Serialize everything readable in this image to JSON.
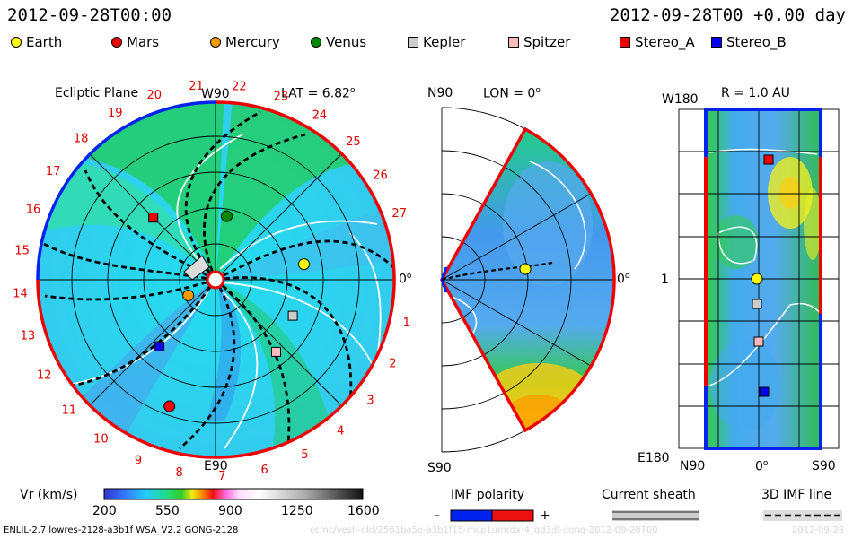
{
  "header": {
    "left_time": "2012-09-28T00:00",
    "right_time": "2012-09-28T00 +0.00 day"
  },
  "legend": [
    {
      "label": "Earth",
      "color": "#ffff00",
      "shape": "circle"
    },
    {
      "label": "Mars",
      "color": "#ee0000",
      "shape": "circle"
    },
    {
      "label": "Mercury",
      "color": "#ff9900",
      "shape": "circle"
    },
    {
      "label": "Venus",
      "color": "#008800",
      "shape": "circle"
    },
    {
      "label": "Kepler",
      "color": "#cccccc",
      "shape": "square"
    },
    {
      "label": "Spitzer",
      "color": "#ffbbbb",
      "shape": "square"
    },
    {
      "label": "Stereo_A",
      "color": "#ee0000",
      "shape": "square"
    },
    {
      "label": "Stereo_B",
      "color": "#0000ee",
      "shape": "square"
    }
  ],
  "panel1": {
    "title": "Ecliptic Plane",
    "lat": "LAT = 6.82",
    "top_label": "W90",
    "bottom_label": "E90",
    "right_label": "0",
    "carrington": [
      "1",
      "2",
      "3",
      "4",
      "5",
      "6",
      "7",
      "8",
      "9",
      "10",
      "11",
      "12",
      "13",
      "14",
      "15",
      "16",
      "17",
      "18",
      "19",
      "20",
      "21",
      "22",
      "23",
      "24",
      "25",
      "26",
      "27"
    ]
  },
  "panel2": {
    "lon": "LON = 0",
    "top_label": "N90",
    "bottom_label": "S90",
    "right_label": "0"
  },
  "panel3": {
    "title": "R = 1.0 AU",
    "top_label": "W180",
    "bottom_label": "E180",
    "mid_label": "1",
    "x_labels": [
      "N90",
      "0",
      "S90"
    ]
  },
  "colorbar": {
    "label": "Vr (km/s)",
    "ticks": [
      "200",
      "550",
      "900",
      "1250",
      "1600"
    ]
  },
  "bottom": {
    "imf_title": "IMF polarity",
    "minus": "–",
    "plus": "+",
    "sheath_title": "Current sheath",
    "imf_line_title": "3D IMF line"
  },
  "footer": {
    "model": "ENLIL-2.7 lowres-2128-a3b1f WSA_V2.2 GONG-2128",
    "run_id": "ccmc/vesh-old/2561ba5e-a3b1f15-mcp1umrdx-4_gd3df-gong-2012-09-28T00",
    "date": "2012-09-28"
  },
  "chart_data": {
    "type": "heatmap",
    "title": "Ecliptic Plane",
    "colorbar": {
      "label": "Vr (km/s)",
      "range": [
        200,
        1600
      ],
      "ticks": [
        200,
        550,
        900,
        1250,
        1600
      ]
    },
    "time": "2012-09-28T00:00",
    "elapsed": "+0.00 day",
    "ecliptic_objects": [
      {
        "name": "Earth",
        "angle_deg": 10,
        "r_au": 1.0
      },
      {
        "name": "Mercury",
        "angle_deg": -150,
        "r_au": 0.35
      },
      {
        "name": "Venus",
        "angle_deg": 80,
        "r_au": 0.72
      },
      {
        "name": "Mars",
        "angle_deg": -110,
        "r_au": 1.5
      },
      {
        "name": "Kepler",
        "angle_deg": -25,
        "r_au": 0.95
      },
      {
        "name": "Spitzer",
        "angle_deg": -50,
        "r_au": 1.05
      },
      {
        "name": "Stereo_A",
        "angle_deg": 135,
        "r_au": 0.98
      },
      {
        "name": "Stereo_B",
        "angle_deg": -130,
        "r_au": 0.97
      }
    ]
  }
}
